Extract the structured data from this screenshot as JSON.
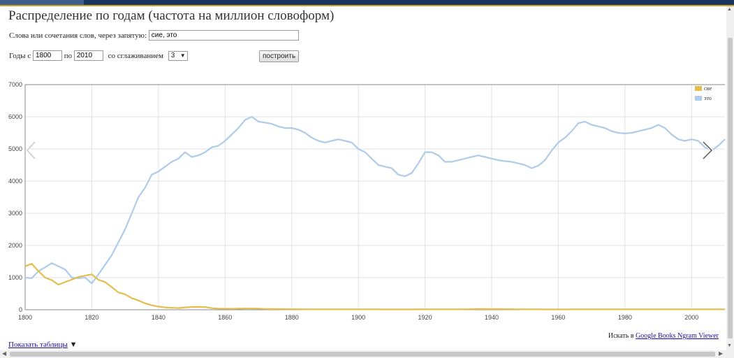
{
  "page": {
    "title": "Распределение по годам (частота на миллион словоформ)"
  },
  "form": {
    "words_label": "Слова или сочетания слов, через запятую:",
    "words_value": "сие, это",
    "years_label": "Годы с",
    "year_from": "1800",
    "to_label": "по",
    "year_to": "2010",
    "smoothing_label": "со сглаживанием",
    "smoothing_value": "3",
    "build_label": "построить"
  },
  "footer": {
    "search_prefix": "Искать в",
    "search_link": "Google Books Ngram Viewer",
    "show_table": "Показать таблицы"
  },
  "icons": {
    "prev": "chevron-left-icon",
    "next": "chevron-right-icon",
    "toggle": "triangle-down-icon"
  },
  "chart_data": {
    "type": "line",
    "xlim": [
      1800,
      2010
    ],
    "ylim": [
      0,
      7000
    ],
    "x_ticks": [
      1800,
      1820,
      1840,
      1860,
      1880,
      1900,
      1920,
      1940,
      1960,
      1980,
      2000
    ],
    "y_ticks": [
      0,
      1000,
      2000,
      3000,
      4000,
      5000,
      6000,
      7000
    ],
    "grid": true,
    "legend_position": "top-right",
    "x": [
      1800,
      1802,
      1804,
      1806,
      1808,
      1810,
      1812,
      1814,
      1816,
      1818,
      1820,
      1822,
      1824,
      1826,
      1828,
      1830,
      1832,
      1834,
      1836,
      1838,
      1840,
      1842,
      1844,
      1846,
      1848,
      1850,
      1852,
      1854,
      1856,
      1858,
      1860,
      1862,
      1864,
      1866,
      1868,
      1870,
      1872,
      1874,
      1876,
      1878,
      1880,
      1882,
      1884,
      1886,
      1888,
      1890,
      1892,
      1894,
      1896,
      1898,
      1900,
      1902,
      1904,
      1906,
      1908,
      1910,
      1912,
      1914,
      1916,
      1918,
      1920,
      1922,
      1924,
      1926,
      1928,
      1930,
      1932,
      1934,
      1936,
      1938,
      1940,
      1942,
      1944,
      1946,
      1948,
      1950,
      1952,
      1954,
      1956,
      1958,
      1960,
      1962,
      1964,
      1966,
      1968,
      1970,
      1972,
      1974,
      1976,
      1978,
      1980,
      1982,
      1984,
      1986,
      1988,
      1990,
      1992,
      1994,
      1996,
      1998,
      2000,
      2002,
      2004,
      2006,
      2008,
      2010
    ],
    "series": [
      {
        "name": "сие",
        "color": "#e3bd4e",
        "values": [
          1350,
          1430,
          1200,
          1000,
          920,
          780,
          860,
          940,
          1020,
          1060,
          1100,
          930,
          860,
          700,
          540,
          480,
          360,
          290,
          200,
          140,
          100,
          75,
          60,
          52,
          75,
          88,
          90,
          85,
          50,
          38,
          32,
          30,
          34,
          40,
          40,
          36,
          26,
          24,
          22,
          20,
          20,
          18,
          14,
          12,
          12,
          12,
          14,
          14,
          14,
          12,
          14,
          14,
          12,
          12,
          10,
          10,
          10,
          10,
          10,
          12,
          12,
          12,
          12,
          12,
          14,
          14,
          16,
          20,
          24,
          24,
          22,
          24,
          20,
          18,
          16,
          14,
          12,
          12,
          10,
          10,
          10,
          10,
          12,
          12,
          12,
          12,
          12,
          12,
          12,
          12,
          12,
          12,
          12,
          12,
          12,
          12,
          12,
          12,
          12,
          12,
          12,
          12,
          12,
          12,
          12,
          12
        ]
      },
      {
        "name": "это",
        "color": "#aecbea",
        "values": [
          1000,
          980,
          1200,
          1320,
          1450,
          1350,
          1250,
          1000,
          980,
          1000,
          820,
          1100,
          1400,
          1700,
          2100,
          2500,
          3000,
          3500,
          3800,
          4200,
          4300,
          4450,
          4600,
          4700,
          4900,
          4750,
          4800,
          4900,
          5050,
          5100,
          5250,
          5450,
          5650,
          5900,
          6000,
          5850,
          5820,
          5780,
          5700,
          5650,
          5650,
          5600,
          5500,
          5350,
          5250,
          5200,
          5250,
          5300,
          5250,
          5200,
          5000,
          4900,
          4700,
          4500,
          4450,
          4400,
          4200,
          4150,
          4250,
          4550,
          4900,
          4900,
          4800,
          4600,
          4600,
          4650,
          4700,
          4750,
          4800,
          4750,
          4700,
          4650,
          4620,
          4600,
          4550,
          4500,
          4400,
          4480,
          4650,
          4950,
          5200,
          5350,
          5550,
          5800,
          5850,
          5750,
          5700,
          5650,
          5550,
          5500,
          5480,
          5500,
          5550,
          5600,
          5650,
          5750,
          5650,
          5450,
          5300,
          5250,
          5300,
          5250,
          5050,
          4950,
          5100,
          5300
        ]
      }
    ]
  }
}
